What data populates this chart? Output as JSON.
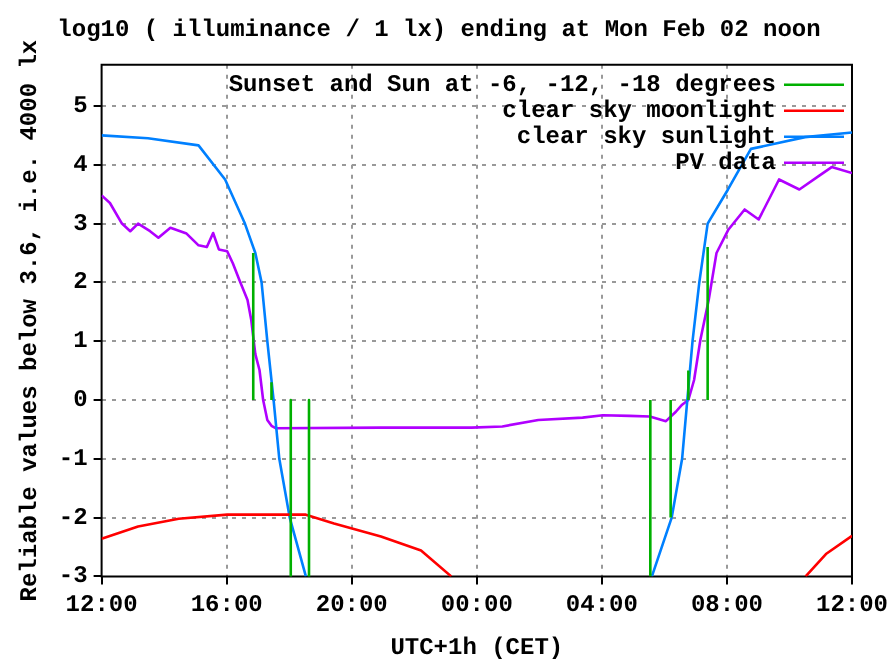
{
  "chart_data": {
    "type": "line",
    "title": "log10 ( illuminance / 1 lx) ending at Mon Feb 02 noon",
    "xlabel": "UTC+1h (CET)",
    "ylabel": "Reliable values below 3.6, i.e. 4000 lx",
    "xlim": [
      "--02-01T12:00",
      "--02-02T12:00"
    ],
    "xticks": [
      {
        "value": "--02-01T12:00",
        "label": "12:00"
      },
      {
        "value": "--02-01T16:00",
        "label": "16:00"
      },
      {
        "value": "--02-01T20:00",
        "label": "20:00"
      },
      {
        "value": "--02-02T00:00",
        "label": "00:00"
      },
      {
        "value": "--02-02T04:00",
        "label": "04:00"
      },
      {
        "value": "--02-02T08:00",
        "label": "08:00"
      },
      {
        "value": "--02-02T12:00",
        "label": "12:00"
      }
    ],
    "ylim": [
      -3,
      5.7
    ],
    "yticks": [
      -3,
      -2,
      -1,
      0,
      1,
      2,
      3,
      4,
      5
    ],
    "grid": true,
    "legend": "top right",
    "marker": "none",
    "line_style": "solid",
    "series": [
      {
        "name": "Sunset and Sun at -6, -12, -18 degrees",
        "color": "#00b000",
        "x": [
          "--02-01T16:51",
          "--02-01T16:51",
          null,
          "--02-01T17:26",
          "--02-01T17:26",
          null,
          "--02-01T18:03",
          "--02-01T18:03",
          null,
          "--02-01T18:38",
          "--02-01T18:38",
          null,
          "--02-02T05:33",
          "--02-02T05:33",
          null,
          "--02-02T06:12",
          "--02-02T06:12",
          null,
          "--02-02T06:46",
          "--02-02T06:46",
          null,
          "--02-02T07:23",
          "--02-02T07:23"
        ],
        "values": [
          0,
          2.5,
          null,
          0,
          0.3,
          null,
          0,
          -3,
          null,
          0,
          -3,
          null,
          -3,
          0,
          null,
          -2,
          0,
          null,
          0,
          0.5,
          null,
          0,
          2.6
        ]
      },
      {
        "name": "clear sky moonlight",
        "color": "#ff0000",
        "x": [
          "--02-01T12:00",
          "--02-01T13:10",
          "--02-01T14:28",
          "--02-01T16:01",
          "--02-01T17:41",
          "--02-01T18:32",
          "--02-01T19:26",
          "--02-01T20:56",
          "--02-01T22:13",
          "--02-01T23:11",
          null,
          "--02-02T10:31",
          "--02-02T11:10",
          "--02-02T12:00"
        ],
        "values": [
          -2.36,
          -2.15,
          -2.02,
          -1.95,
          -1.95,
          -1.95,
          -2.1,
          -2.32,
          -2.56,
          -3,
          null,
          -3,
          -2.62,
          -2.31
        ]
      },
      {
        "name": "clear sky sunlight",
        "color": "#0080ff",
        "x": [
          "--02-01T12:00",
          "--02-01T13:29",
          "--02-01T15:06",
          "--02-01T15:57",
          "--02-01T16:35",
          "--02-01T16:55",
          "--02-01T17:07",
          "--02-01T17:18",
          "--02-01T17:30",
          "--02-01T17:41",
          "--02-01T18:01",
          "--02-01T18:32",
          null,
          "--02-02T05:36",
          "--02-02T06:14",
          "--02-02T06:34",
          "--02-02T06:44",
          "--02-02T06:54",
          "--02-02T07:07",
          "--02-02T07:23",
          "--02-02T08:02",
          "--02-02T08:46",
          "--02-02T10:30",
          "--02-02T12:00"
        ],
        "values": [
          4.5,
          4.45,
          4.33,
          3.75,
          3.0,
          2.5,
          2.0,
          1.0,
          0,
          -1,
          -2,
          -3,
          null,
          -3,
          -2,
          -1,
          0,
          1,
          2,
          3,
          3.58,
          4.27,
          4.47,
          4.55
        ]
      },
      {
        "name": "PV data",
        "color": "#b000ff",
        "x": [
          "--02-01T12:00",
          "--02-01T12:16",
          "--02-01T12:39",
          "--02-01T12:55",
          "--02-01T13:10",
          "--02-01T13:33",
          "--02-01T13:49",
          "--02-01T14:12",
          "--02-01T14:43",
          "--02-01T15:06",
          "--02-01T15:22",
          "--02-01T15:34",
          "--02-01T15:45",
          "--02-01T16:01",
          "--02-01T16:12",
          "--02-01T16:24",
          "--02-01T16:40",
          "--02-01T16:47",
          "--02-01T16:55",
          "--02-01T17:03",
          "--02-01T17:10",
          "--02-01T17:18",
          "--02-01T17:26",
          "--02-01T17:34",
          "--02-01T20:56",
          "--02-01T23:50",
          "--02-02T00:49",
          "--02-02T01:58",
          "--02-02T03:23",
          "--02-02T04:02",
          "--02-02T04:53",
          "--02-02T05:32",
          "--02-02T06:03",
          "--02-02T06:22",
          "--02-02T06:34",
          "--02-02T06:46",
          "--02-02T06:57",
          "--02-02T07:09",
          "--02-02T07:25",
          "--02-02T07:40",
          "--02-02T08:03",
          "--02-02T08:34",
          "--02-02T09:01",
          "--02-02T09:40",
          "--02-02T10:19",
          "--02-02T10:58",
          "--02-02T11:21",
          "--02-02T12:00"
        ],
        "values": [
          3.48,
          3.35,
          3.0,
          2.87,
          3.0,
          2.87,
          2.76,
          2.93,
          2.83,
          2.63,
          2.6,
          2.84,
          2.56,
          2.53,
          2.32,
          2.05,
          1.7,
          1.37,
          0.78,
          0.51,
          0,
          -0.34,
          -0.44,
          -0.48,
          -0.47,
          -0.47,
          -0.45,
          -0.34,
          -0.3,
          -0.26,
          -0.27,
          -0.28,
          -0.36,
          -0.2,
          -0.08,
          0,
          0.34,
          1.02,
          1.7,
          2.5,
          2.9,
          3.24,
          3.07,
          3.75,
          3.58,
          3.82,
          3.96,
          3.86
        ]
      }
    ]
  }
}
